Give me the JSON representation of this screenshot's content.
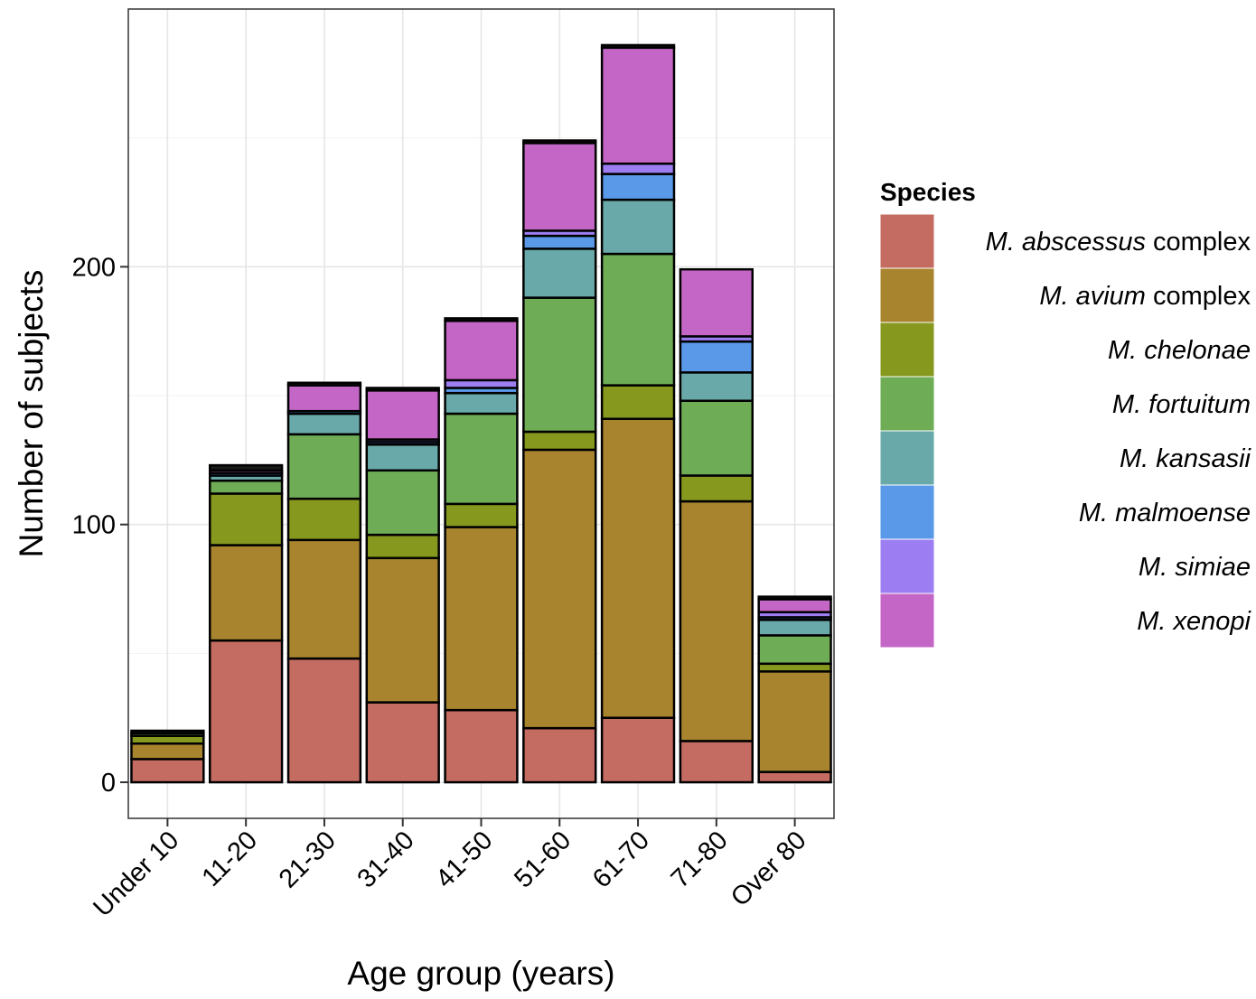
{
  "chart_data": {
    "type": "bar",
    "stacked": true,
    "xlabel": "Age group (years)",
    "ylabel": "Number of subjects",
    "ylim": [
      -14,
      300
    ],
    "yticks": [
      0,
      100,
      200
    ],
    "grid": true,
    "legend_position": "right",
    "categories": [
      "Under 10",
      "11-20",
      "21-30",
      "31-40",
      "41-50",
      "51-60",
      "61-70",
      "71-80",
      "Over 80"
    ],
    "series": [
      {
        "name": "M. abscessus complex",
        "color": "#c46b62",
        "values": [
          9,
          55,
          48,
          31,
          28,
          21,
          25,
          16,
          4
        ]
      },
      {
        "name": "M. avium complex",
        "color": "#a8842e",
        "values": [
          6,
          37,
          46,
          56,
          71,
          108,
          116,
          93,
          39
        ]
      },
      {
        "name": "M. chelonae",
        "color": "#87981e",
        "values": [
          3,
          20,
          16,
          9,
          9,
          7,
          13,
          10,
          3
        ]
      },
      {
        "name": "M. fortuitum",
        "color": "#6fac56",
        "values": [
          1,
          5,
          25,
          25,
          35,
          52,
          51,
          29,
          11
        ]
      },
      {
        "name": "M. kansasii",
        "color": "#6aa9a9",
        "values": [
          0,
          2,
          8,
          10,
          8,
          19,
          21,
          11,
          6
        ]
      },
      {
        "name": "M. malmoense",
        "color": "#5a98e8",
        "values": [
          0,
          1,
          1,
          1,
          2,
          5,
          10,
          12,
          1
        ]
      },
      {
        "name": "M. simiae",
        "color": "#9c7ef2",
        "values": [
          0,
          0,
          0,
          1,
          3,
          2,
          4,
          2,
          2
        ]
      },
      {
        "name": "M. xenopi",
        "color": "#c466c6",
        "values": [
          0,
          1,
          10,
          19,
          23,
          34,
          45,
          26,
          5
        ]
      },
      {
        "name": "",
        "color": "#1a1a1a",
        "values": [
          1,
          2,
          1,
          1,
          1,
          1,
          1,
          0,
          1
        ]
      }
    ]
  },
  "legend": {
    "title": "Species",
    "items": [
      {
        "italic": "M. abscessus",
        "rest": " complex",
        "color": "#c46b62"
      },
      {
        "italic": "M. avium",
        "rest": " complex",
        "color": "#a8842e"
      },
      {
        "italic": "M. chelonae",
        "rest": "",
        "color": "#87981e"
      },
      {
        "italic": "M. fortuitum",
        "rest": "",
        "color": "#6fac56"
      },
      {
        "italic": "M. kansasii",
        "rest": "",
        "color": "#6aa9a9"
      },
      {
        "italic": "M. malmoense",
        "rest": "",
        "color": "#5a98e8"
      },
      {
        "italic": "M. simiae",
        "rest": "",
        "color": "#9c7ef2"
      },
      {
        "italic": "M. xenopi",
        "rest": "",
        "color": "#c466c6"
      }
    ]
  }
}
